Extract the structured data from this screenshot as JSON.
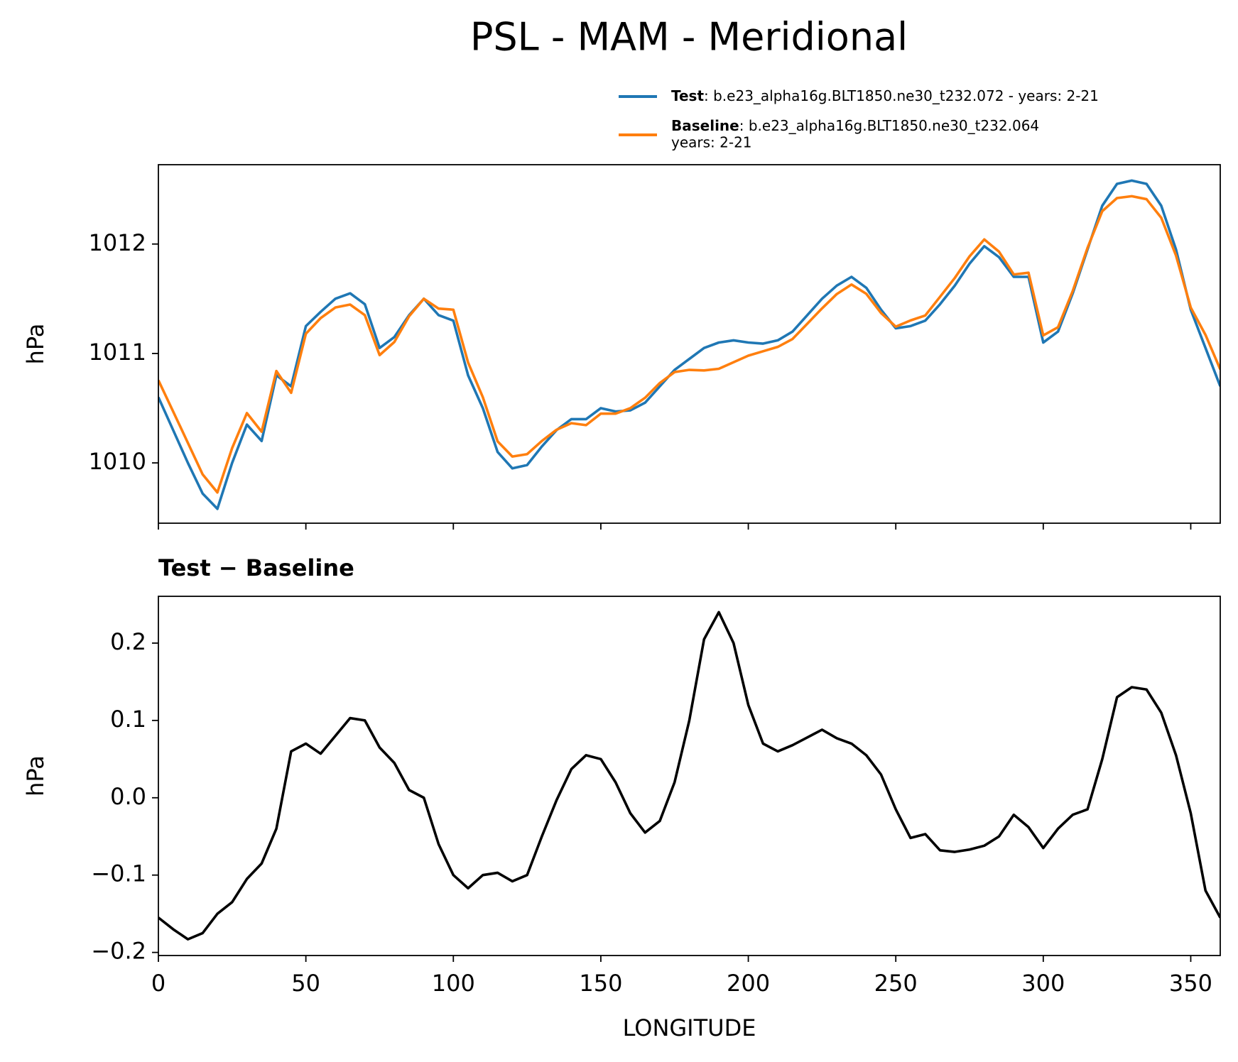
{
  "title": "PSL - MAM - Meridional",
  "chart_data": [
    {
      "type": "line",
      "ylabel": "hPa",
      "legend": "upper right",
      "x": [
        0,
        5,
        10,
        15,
        20,
        25,
        30,
        35,
        40,
        45,
        50,
        55,
        60,
        65,
        70,
        75,
        80,
        85,
        90,
        95,
        100,
        105,
        110,
        115,
        120,
        125,
        130,
        135,
        140,
        145,
        150,
        155,
        160,
        165,
        170,
        175,
        180,
        185,
        190,
        195,
        200,
        205,
        210,
        215,
        220,
        225,
        230,
        235,
        240,
        245,
        250,
        255,
        260,
        265,
        270,
        275,
        280,
        285,
        290,
        295,
        300,
        305,
        310,
        315,
        320,
        325,
        330,
        335,
        340,
        345,
        350,
        355,
        360
      ],
      "series": [
        {
          "name": "Test",
          "description": [
            ": b.e23_alpha16g.BLT1850.ne30_t232.072 - years: 2-21"
          ],
          "color": "#1f77b4",
          "values": [
            1010.6,
            1010.3,
            1010.0,
            1009.72,
            1009.58,
            1010.0,
            1010.35,
            1010.2,
            1010.8,
            1010.7,
            1011.25,
            1011.38,
            1011.5,
            1011.55,
            1011.45,
            1011.05,
            1011.15,
            1011.35,
            1011.5,
            1011.35,
            1011.3,
            1010.8,
            1010.5,
            1010.1,
            1009.95,
            1009.98,
            1010.15,
            1010.3,
            1010.4,
            1010.4,
            1010.5,
            1010.47,
            1010.48,
            1010.55,
            1010.7,
            1010.85,
            1010.95,
            1011.05,
            1011.1,
            1011.12,
            1011.1,
            1011.09,
            1011.12,
            1011.2,
            1011.35,
            1011.5,
            1011.62,
            1011.7,
            1011.6,
            1011.4,
            1011.23,
            1011.25,
            1011.3,
            1011.45,
            1011.62,
            1011.82,
            1011.98,
            1011.88,
            1011.7,
            1011.7,
            1011.1,
            1011.2,
            1011.55,
            1011.95,
            1012.35,
            1012.55,
            1012.58,
            1012.55,
            1012.35,
            1011.95,
            1011.4,
            1011.05,
            1010.7
          ]
        },
        {
          "name": "Baseline",
          "description": [
            ": b.e23_alpha16g.BLT1850.ne30_t232.064",
            "years: 2-21"
          ],
          "color": "#ff7f0e",
          "values": [
            1010.755,
            1010.47,
            1010.183,
            1009.895,
            1009.73,
            1010.135,
            1010.455,
            1010.285,
            1010.84,
            1010.64,
            1011.18,
            1011.323,
            1011.42,
            1011.447,
            1011.35,
            1010.985,
            1011.105,
            1011.34,
            1011.5,
            1011.41,
            1011.4,
            1010.917,
            1010.6,
            1010.197,
            1010.058,
            1010.08,
            1010.2,
            1010.303,
            1010.363,
            1010.345,
            1010.45,
            1010.45,
            1010.5,
            1010.595,
            1010.73,
            1010.83,
            1010.85,
            1010.845,
            1010.86,
            1010.92,
            1010.98,
            1011.02,
            1011.06,
            1011.132,
            1011.272,
            1011.412,
            1011.543,
            1011.63,
            1011.545,
            1011.37,
            1011.245,
            1011.302,
            1011.347,
            1011.518,
            1011.69,
            1011.887,
            1012.042,
            1011.93,
            1011.722,
            1011.738,
            1011.165,
            1011.24,
            1011.572,
            1011.965,
            1012.3,
            1012.42,
            1012.437,
            1012.41,
            1012.24,
            1011.895,
            1011.42,
            1011.17,
            1010.855
          ]
        }
      ],
      "xlim": [
        0,
        360
      ],
      "xticks": [
        0,
        50,
        100,
        150,
        200,
        250,
        300,
        350
      ],
      "show_xtick_labels": false,
      "ylim": [
        1009.449,
        1012.725
      ],
      "yticks": [
        1010,
        1011,
        1012
      ]
    },
    {
      "type": "line",
      "title": "Test − Baseline",
      "ylabel": "hPa",
      "xlabel": "LONGITUDE",
      "x": [
        0,
        5,
        10,
        15,
        20,
        25,
        30,
        35,
        40,
        45,
        50,
        55,
        60,
        65,
        70,
        75,
        80,
        85,
        90,
        95,
        100,
        105,
        110,
        115,
        120,
        125,
        130,
        135,
        140,
        145,
        150,
        155,
        160,
        165,
        170,
        175,
        180,
        185,
        190,
        195,
        200,
        205,
        210,
        215,
        220,
        225,
        230,
        235,
        240,
        245,
        250,
        255,
        260,
        265,
        270,
        275,
        280,
        285,
        290,
        295,
        300,
        305,
        310,
        315,
        320,
        325,
        330,
        335,
        340,
        345,
        350,
        355,
        360
      ],
      "series": [
        {
          "color": "#000000",
          "values": [
            -0.155,
            -0.17,
            -0.183,
            -0.175,
            -0.15,
            -0.135,
            -0.105,
            -0.085,
            -0.04,
            0.06,
            0.07,
            0.057,
            0.08,
            0.103,
            0.1,
            0.065,
            0.045,
            0.01,
            0.0,
            -0.06,
            -0.1,
            -0.117,
            -0.1,
            -0.097,
            -0.108,
            -0.1,
            -0.05,
            -0.003,
            0.037,
            0.055,
            0.05,
            0.02,
            -0.02,
            -0.045,
            -0.03,
            0.02,
            0.1,
            0.205,
            0.24,
            0.2,
            0.12,
            0.07,
            0.06,
            0.068,
            0.078,
            0.088,
            0.077,
            0.07,
            0.055,
            0.03,
            -0.015,
            -0.052,
            -0.047,
            -0.068,
            -0.07,
            -0.067,
            -0.062,
            -0.05,
            -0.022,
            -0.038,
            -0.065,
            -0.04,
            -0.022,
            -0.015,
            0.05,
            0.13,
            0.143,
            0.14,
            0.11,
            0.055,
            -0.02,
            -0.12,
            -0.155
          ]
        }
      ],
      "xlim": [
        0,
        360
      ],
      "xticks": [
        0,
        50,
        100,
        150,
        200,
        250,
        300,
        350
      ],
      "show_xtick_labels": true,
      "ylim": [
        -0.204,
        0.2605
      ],
      "yticks": [
        {
          "value": -0.2,
          "label": "−0.2"
        },
        {
          "value": -0.1,
          "label": "−0.1"
        },
        {
          "value": 0,
          "label": "0.0"
        },
        0.1,
        0.2
      ]
    }
  ]
}
